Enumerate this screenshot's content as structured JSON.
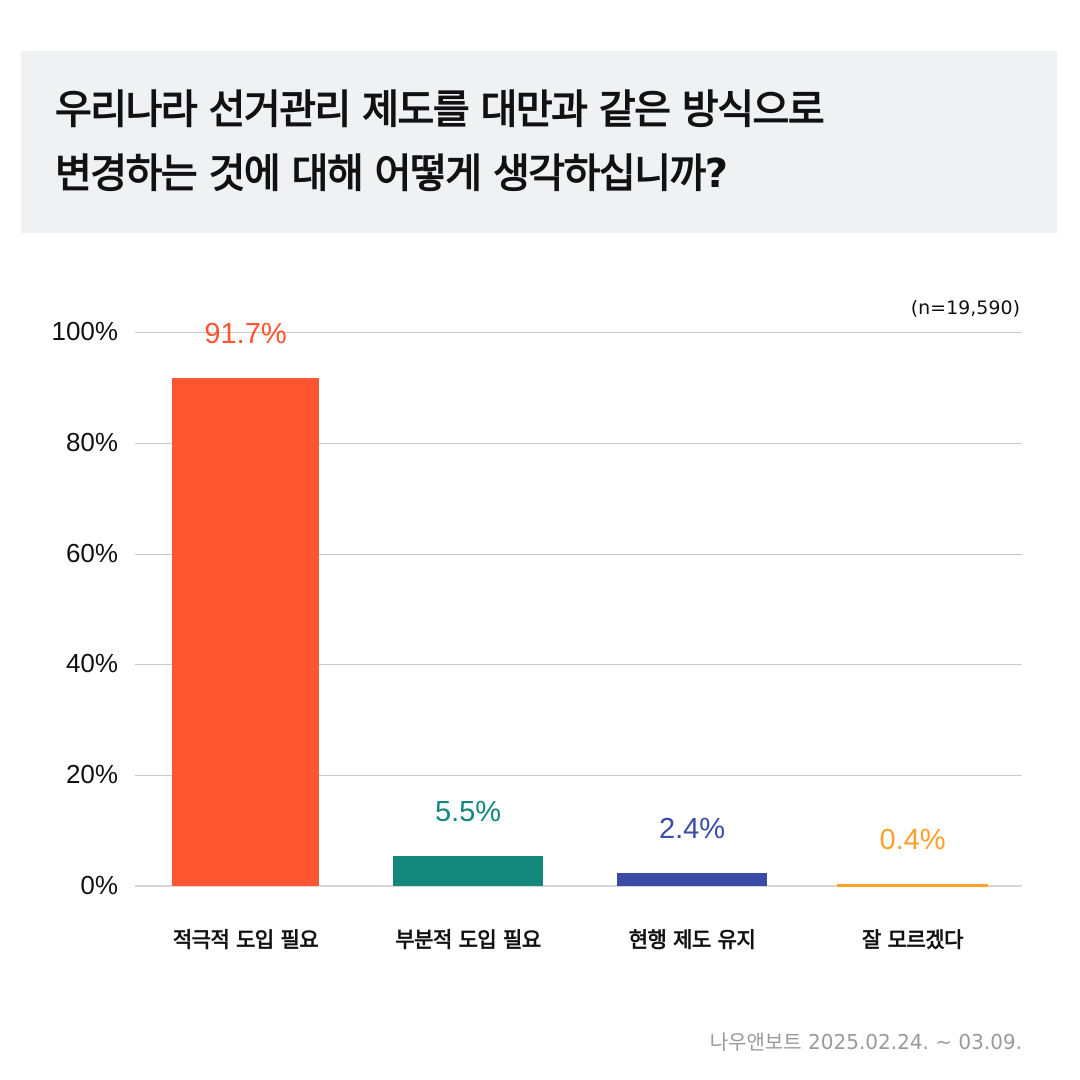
{
  "header": {
    "title_line1": "우리나라 선거관리 제도를 대만과 같은 방식으로",
    "title_line2": "변경하는 것에 대해 어떻게 생각하십니까?"
  },
  "sample_size": "(n=19,590)",
  "source": "나우앤보트 2025.02.24. ~ 03.09.",
  "yticks": [
    "100%",
    "80%",
    "60%",
    "40%",
    "20%",
    "0%"
  ],
  "bars": [
    {
      "label": "적극적 도입 필요",
      "value": 91.7,
      "value_label": "91.7%",
      "color": "#ff5530"
    },
    {
      "label": "부분적 도입 필요",
      "value": 5.5,
      "value_label": "5.5%",
      "color": "#13877a"
    },
    {
      "label": "현행 제도 유지",
      "value": 2.4,
      "value_label": "2.4%",
      "color": "#3a4ca6"
    },
    {
      "label": "잘 모르겠다",
      "value": 0.4,
      "value_label": "0.4%",
      "color": "#ffa02c"
    }
  ],
  "chart_data": {
    "type": "bar",
    "title": "우리나라 선거관리 제도를 대만과 같은 방식으로 변경하는 것에 대해 어떻게 생각하십니까?",
    "categories": [
      "적극적 도입 필요",
      "부분적 도입 필요",
      "현행 제도 유지",
      "잘 모르겠다"
    ],
    "values": [
      91.7,
      5.5,
      2.4,
      0.4
    ],
    "colors": [
      "#ff5530",
      "#13877a",
      "#3a4ca6",
      "#ffa02c"
    ],
    "annotations": [
      "(n=19,590)",
      "나우앤보트 2025.02.24. ~ 03.09."
    ],
    "xlabel": "",
    "ylabel": "",
    "ylim": [
      0,
      100
    ],
    "yticks": [
      "0%",
      "20%",
      "40%",
      "60%",
      "80%",
      "100%"
    ],
    "grid": true,
    "legend": "none"
  }
}
